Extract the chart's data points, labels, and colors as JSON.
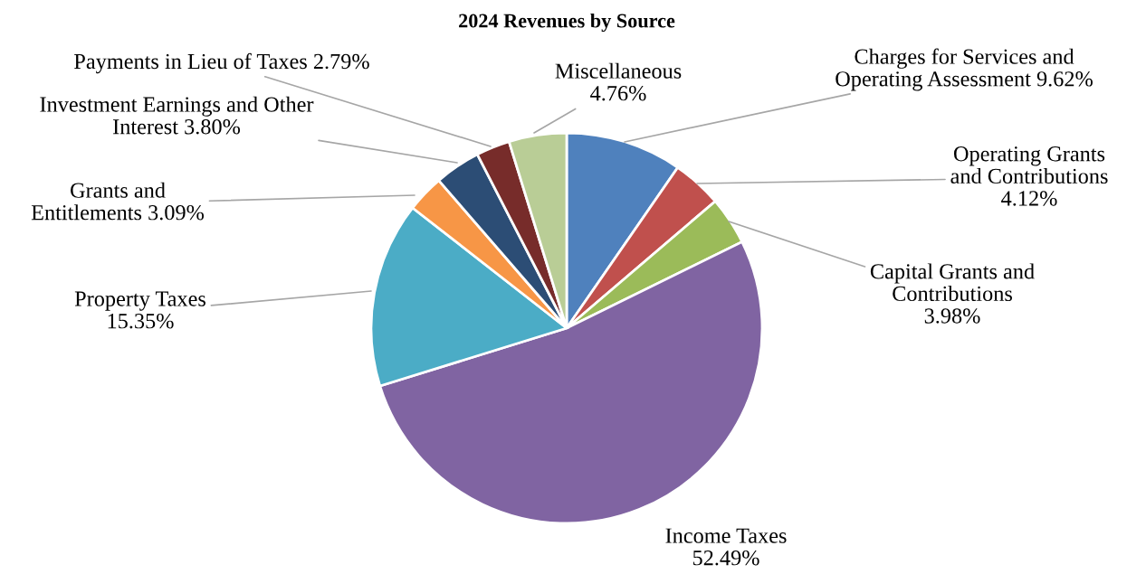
{
  "chart_data": {
    "type": "pie",
    "title": "2024 Revenues by Source",
    "categories": [
      "Charges for Services and\nOperating Assessment",
      "Operating Grants\nand Contributions\n",
      "Capital Grants and\nContributions\n",
      "Income Taxes\n",
      "Property Taxes\n",
      "Grants and\nEntitlements",
      "Investment Earnings and Other\nInterest",
      "Payments in Lieu of Taxes",
      "Miscellaneous\n"
    ],
    "values": [
      9.62,
      4.12,
      3.98,
      52.49,
      15.35,
      3.09,
      3.8,
      2.79,
      4.76
    ],
    "colors": [
      "#4f81bd",
      "#c0504d",
      "#9bbb59",
      "#8064a2",
      "#4bacc6",
      "#f79646",
      "#2c4d75",
      "#772c2a",
      "#b9cd96"
    ],
    "value_labels": [
      "9.62%",
      "4.12%",
      "3.98%",
      "52.49%",
      "15.35%",
      "3.09%",
      "3.80%",
      "2.79%",
      "4.76%"
    ]
  }
}
